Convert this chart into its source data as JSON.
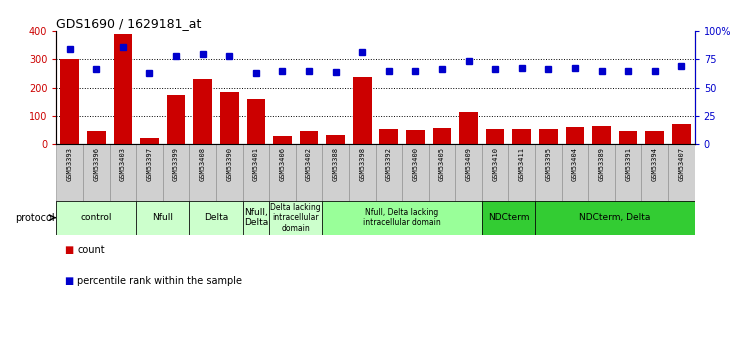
{
  "title": "GDS1690 / 1629181_at",
  "samples": [
    "GSM53393",
    "GSM53396",
    "GSM53403",
    "GSM53397",
    "GSM53399",
    "GSM53408",
    "GSM53390",
    "GSM53401",
    "GSM53406",
    "GSM53402",
    "GSM53388",
    "GSM53398",
    "GSM53392",
    "GSM53400",
    "GSM53405",
    "GSM53409",
    "GSM53410",
    "GSM53411",
    "GSM53395",
    "GSM53404",
    "GSM53389",
    "GSM53391",
    "GSM53394",
    "GSM53407"
  ],
  "counts": [
    300,
    45,
    390,
    22,
    175,
    230,
    185,
    160,
    30,
    47,
    33,
    238,
    55,
    50,
    58,
    112,
    55,
    52,
    55,
    60,
    63,
    48,
    47,
    70
  ],
  "percentiles": [
    335,
    265,
    345,
    250,
    310,
    320,
    310,
    250,
    258,
    260,
    255,
    325,
    260,
    260,
    265,
    295,
    265,
    270,
    265,
    270,
    260,
    260,
    258,
    275
  ],
  "bar_color": "#cc0000",
  "dot_color": "#0000cc",
  "ytick_labels_left": [
    "0",
    "100",
    "200",
    "300",
    "400"
  ],
  "ytick_labels_right": [
    "0",
    "25",
    "50",
    "75",
    "100%"
  ],
  "groups": [
    {
      "label": "control",
      "start": 0,
      "end": 3,
      "color": "#ccffcc"
    },
    {
      "label": "Nfull",
      "start": 3,
      "end": 5,
      "color": "#ccffcc"
    },
    {
      "label": "Delta",
      "start": 5,
      "end": 7,
      "color": "#ccffcc"
    },
    {
      "label": "Nfull,\nDelta",
      "start": 7,
      "end": 8,
      "color": "#ccffcc"
    },
    {
      "label": "Delta lacking\nintracellular\ndomain",
      "start": 8,
      "end": 10,
      "color": "#ccffcc"
    },
    {
      "label": "Nfull, Delta lacking\nintracellular domain",
      "start": 10,
      "end": 16,
      "color": "#99ff99"
    },
    {
      "label": "NDCterm",
      "start": 16,
      "end": 18,
      "color": "#33cc33"
    },
    {
      "label": "NDCterm, Delta",
      "start": 18,
      "end": 24,
      "color": "#33cc33"
    }
  ],
  "protocol_label": "protocol",
  "legend_count": "count",
  "legend_percentile": "percentile rank within the sample",
  "bg_color": "#ffffff",
  "plot_bg": "#ffffff",
  "cell_bg": "#d0d0d0"
}
